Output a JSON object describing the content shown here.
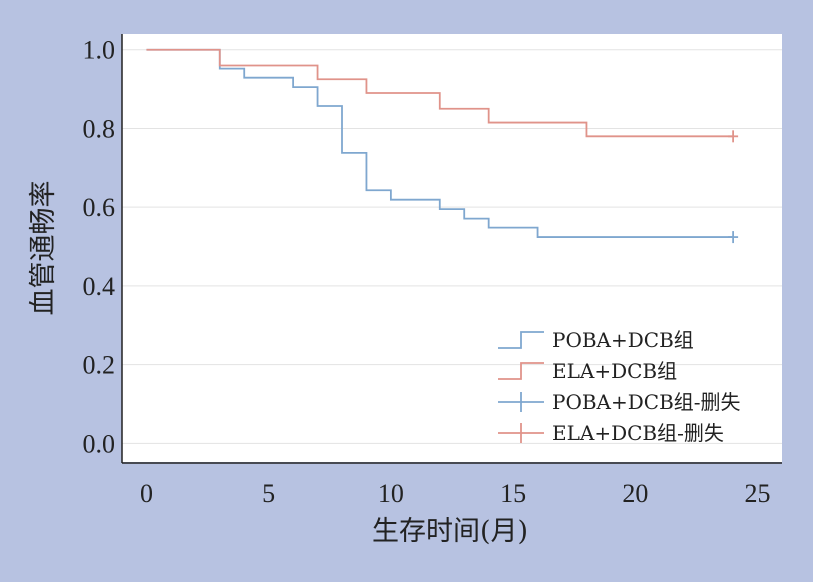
{
  "chart_data": {
    "type": "line",
    "subtype": "kaplan-meier step",
    "xlabel": "生存时间(月)",
    "ylabel": "血管通畅率",
    "xlim": [
      -1,
      26
    ],
    "ylim": [
      -0.05,
      1.04
    ],
    "xticks": [
      0,
      5,
      10,
      15,
      20,
      25
    ],
    "yticks": [
      0.0,
      0.2,
      0.4,
      0.6,
      0.8,
      1.0
    ],
    "ytick_labels": [
      "0.0",
      "0.2",
      "0.4",
      "0.6",
      "0.8",
      "1.0"
    ],
    "grid": "horizontal",
    "legend_position": "bottom-right",
    "legend": [
      "POBA+DCB组",
      "ELA+DCB组",
      "POBA+DCB组-删失",
      "ELA+DCB组-删失"
    ],
    "colors": {
      "POBA+DCB组": "#7fa7cf",
      "ELA+DCB组": "#e0938a"
    },
    "series": [
      {
        "name": "POBA+DCB组",
        "color": "#7fa7cf",
        "x": [
          0,
          3,
          4,
          6,
          7,
          8,
          9,
          10,
          12,
          13,
          14,
          16,
          24
        ],
        "y": [
          1.0,
          0.952,
          0.929,
          0.905,
          0.857,
          0.738,
          0.643,
          0.619,
          0.595,
          0.571,
          0.548,
          0.524,
          0.524
        ],
        "censored": [
          [
            24,
            0.524
          ]
        ]
      },
      {
        "name": "ELA+DCB组",
        "color": "#e0938a",
        "x": [
          0,
          3,
          7,
          9,
          12,
          14,
          18,
          24
        ],
        "y": [
          1.0,
          0.96,
          0.925,
          0.89,
          0.85,
          0.815,
          0.78,
          0.78
        ],
        "censored": [
          [
            24,
            0.78
          ]
        ]
      }
    ]
  }
}
